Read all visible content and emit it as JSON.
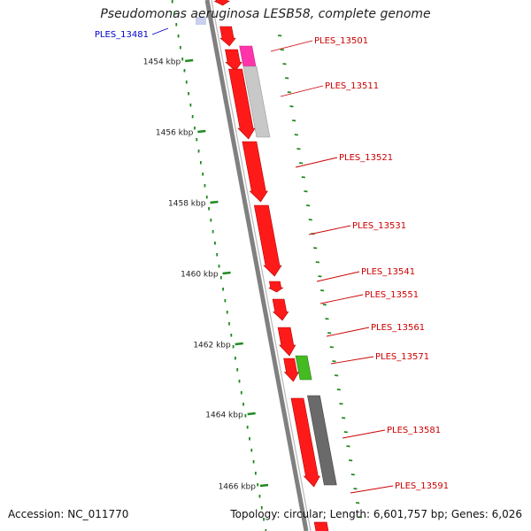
{
  "title": "Pseudomonas aeruginosa LESB58, complete genome",
  "footer": {
    "accession": "Accession: NC_011770",
    "summary": "Topology: circular; Length: 6,601,757 bp; Genes: 6,026"
  },
  "colors": {
    "background": "#ffffff",
    "backbone": "#808080",
    "gene_forward": "#ff1a1a",
    "gene_magenta": "#ff33aa",
    "gene_light_gray": "#c8c8c8",
    "gene_dark_gray": "#6a6a6a",
    "gene_green": "#44bb22",
    "tick_green": "#1f8a1f",
    "label_red": "#cc0000",
    "label_blue": "#0000cc"
  },
  "ticks": [
    {
      "label": "1454 kbp"
    },
    {
      "label": "1456 kbp"
    },
    {
      "label": "1458 kbp"
    },
    {
      "label": "1460 kbp"
    },
    {
      "label": "1462 kbp"
    },
    {
      "label": "1464 kbp"
    },
    {
      "label": "1466 kbp"
    }
  ],
  "genes": [
    {
      "name": "PLES_13481",
      "strand": "reverse",
      "color": "blue"
    },
    {
      "name": "PLES_13501",
      "strand": "forward",
      "color": "red"
    },
    {
      "name": "PLES_13511",
      "strand": "forward",
      "color": "red"
    },
    {
      "name": "PLES_13521",
      "strand": "forward",
      "color": "red"
    },
    {
      "name": "PLES_13531",
      "strand": "forward",
      "color": "red"
    },
    {
      "name": "PLES_13541",
      "strand": "forward",
      "color": "red"
    },
    {
      "name": "PLES_13551",
      "strand": "forward",
      "color": "red"
    },
    {
      "name": "PLES_13561",
      "strand": "forward",
      "color": "red"
    },
    {
      "name": "PLES_13571",
      "strand": "forward",
      "color": "red"
    },
    {
      "name": "PLES_13581",
      "strand": "forward",
      "color": "red"
    },
    {
      "name": "PLES_13591",
      "strand": "forward",
      "color": "red"
    }
  ],
  "features": [
    {
      "name": "magenta-feature",
      "color": "magenta"
    },
    {
      "name": "light-gray-feature",
      "color": "light-gray"
    },
    {
      "name": "green-feature",
      "color": "green"
    },
    {
      "name": "dark-gray-feature",
      "color": "dark-gray"
    }
  ]
}
